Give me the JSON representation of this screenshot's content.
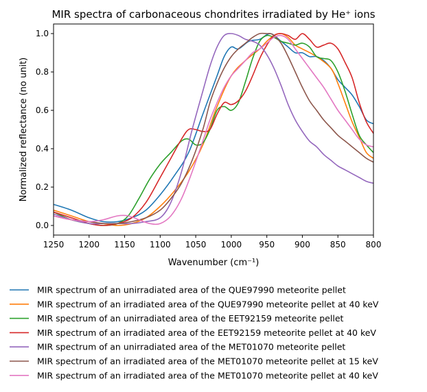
{
  "chart_data": {
    "type": "line",
    "title": "MIR spectra of carbonaceous chondrites irradiated by He⁺ ions",
    "xlabel": "Wavenumber (cm⁻¹)",
    "ylabel": "Normalized reflectance (no unit)",
    "xlim": [
      1250,
      800
    ],
    "ylim": [
      -0.05,
      1.05
    ],
    "x_reversed": true,
    "grid": false,
    "legend_position": "below-plot",
    "xticks": [
      1250,
      1200,
      1150,
      1100,
      1050,
      1000,
      950,
      900,
      850,
      800
    ],
    "yticks": [
      0.0,
      0.2,
      0.4,
      0.6,
      0.8,
      1.0
    ],
    "xtick_labels": [
      "1250",
      "1200",
      "1150",
      "1100",
      "1050",
      "1000",
      "950",
      "900",
      "850",
      "800"
    ],
    "ytick_labels": [
      "0.0",
      "0.2",
      "0.4",
      "0.6",
      "0.8",
      "1.0"
    ],
    "series": [
      {
        "name": "MIR spectrum of an unirradiated area of the QUE97990 meteorite pellet",
        "color": "#1f77b4",
        "x": [
          1250,
          1225,
          1200,
          1180,
          1160,
          1140,
          1120,
          1100,
          1080,
          1060,
          1040,
          1020,
          1010,
          1000,
          990,
          975,
          960,
          945,
          930,
          920,
          910,
          900,
          890,
          880,
          870,
          860,
          850,
          840,
          830,
          820,
          810,
          800
        ],
        "y": [
          0.11,
          0.08,
          0.04,
          0.02,
          0.02,
          0.04,
          0.08,
          0.16,
          0.26,
          0.38,
          0.58,
          0.78,
          0.88,
          0.93,
          0.92,
          0.96,
          0.97,
          1.0,
          0.96,
          0.93,
          0.9,
          0.9,
          0.88,
          0.88,
          0.86,
          0.82,
          0.76,
          0.72,
          0.68,
          0.62,
          0.55,
          0.53
        ]
      },
      {
        "name": "MIR spectrum of an irradiated area of the QUE97990 meteorite pellet at 40 keV",
        "color": "#ff7f0e",
        "x": [
          1250,
          1225,
          1200,
          1180,
          1160,
          1140,
          1120,
          1100,
          1080,
          1060,
          1040,
          1020,
          1000,
          980,
          960,
          950,
          940,
          930,
          920,
          910,
          900,
          880,
          860,
          850,
          840,
          830,
          820,
          810,
          800
        ],
        "y": [
          0.08,
          0.05,
          0.02,
          0.01,
          0.0,
          0.01,
          0.04,
          0.1,
          0.18,
          0.28,
          0.42,
          0.62,
          0.78,
          0.86,
          0.92,
          0.96,
          0.99,
          1.0,
          0.98,
          0.94,
          0.92,
          0.88,
          0.82,
          0.74,
          0.64,
          0.54,
          0.46,
          0.38,
          0.35
        ]
      },
      {
        "name": "MIR spectrum of an unirradiated area of the EET92159 meteorite pellet",
        "color": "#2ca02c",
        "x": [
          1250,
          1225,
          1200,
          1180,
          1160,
          1145,
          1130,
          1115,
          1100,
          1085,
          1070,
          1060,
          1050,
          1040,
          1030,
          1020,
          1010,
          1000,
          990,
          980,
          970,
          960,
          950,
          940,
          930,
          920,
          910,
          900,
          890,
          880,
          870,
          860,
          850,
          840,
          830,
          820,
          810,
          800
        ],
        "y": [
          0.07,
          0.03,
          0.01,
          0.0,
          0.01,
          0.05,
          0.14,
          0.24,
          0.32,
          0.38,
          0.44,
          0.45,
          0.42,
          0.43,
          0.5,
          0.6,
          0.62,
          0.6,
          0.64,
          0.75,
          0.87,
          0.96,
          0.99,
          0.98,
          0.96,
          0.95,
          0.94,
          0.95,
          0.93,
          0.88,
          0.87,
          0.86,
          0.8,
          0.7,
          0.58,
          0.47,
          0.42,
          0.38
        ]
      },
      {
        "name": "MIR spectrum of an irradiated area of the EET92159 meteorite pellet at 40 keV",
        "color": "#d62728",
        "x": [
          1250,
          1225,
          1200,
          1180,
          1160,
          1140,
          1120,
          1100,
          1085,
          1070,
          1060,
          1050,
          1040,
          1030,
          1020,
          1010,
          1000,
          990,
          980,
          970,
          960,
          950,
          940,
          930,
          920,
          910,
          900,
          890,
          880,
          870,
          860,
          850,
          840,
          830,
          820,
          810,
          800
        ],
        "y": [
          0.07,
          0.04,
          0.01,
          0.0,
          0.01,
          0.04,
          0.12,
          0.25,
          0.35,
          0.45,
          0.5,
          0.5,
          0.49,
          0.5,
          0.58,
          0.64,
          0.63,
          0.65,
          0.7,
          0.78,
          0.87,
          0.94,
          0.99,
          1.0,
          0.99,
          0.97,
          1.0,
          0.97,
          0.93,
          0.94,
          0.95,
          0.92,
          0.85,
          0.77,
          0.64,
          0.54,
          0.48
        ]
      },
      {
        "name": "MIR spectrum of an unirradiated area of the MET01070 meteorite pellet",
        "color": "#9467bd",
        "x": [
          1250,
          1225,
          1200,
          1180,
          1160,
          1140,
          1120,
          1100,
          1085,
          1070,
          1055,
          1040,
          1030,
          1020,
          1010,
          1000,
          990,
          980,
          970,
          960,
          950,
          940,
          930,
          920,
          910,
          900,
          890,
          880,
          870,
          860,
          850,
          840,
          830,
          820,
          810,
          800
        ],
        "y": [
          0.06,
          0.03,
          0.01,
          0.01,
          0.01,
          0.01,
          0.02,
          0.04,
          0.12,
          0.28,
          0.5,
          0.7,
          0.83,
          0.93,
          0.99,
          1.0,
          0.99,
          0.97,
          0.96,
          0.94,
          0.89,
          0.82,
          0.73,
          0.63,
          0.55,
          0.49,
          0.44,
          0.41,
          0.37,
          0.34,
          0.31,
          0.29,
          0.27,
          0.25,
          0.23,
          0.22
        ]
      },
      {
        "name": "MIR spectrum of an irradiated area of the MET01070 meteorite pellet at 15 keV",
        "color": "#8c564b",
        "x": [
          1250,
          1225,
          1200,
          1180,
          1160,
          1140,
          1120,
          1100,
          1085,
          1070,
          1055,
          1040,
          1030,
          1020,
          1010,
          1000,
          990,
          980,
          970,
          960,
          950,
          945,
          940,
          930,
          920,
          910,
          900,
          890,
          880,
          870,
          860,
          850,
          840,
          830,
          820,
          810,
          800
        ],
        "y": [
          0.05,
          0.03,
          0.02,
          0.01,
          0.01,
          0.02,
          0.04,
          0.08,
          0.14,
          0.22,
          0.34,
          0.5,
          0.64,
          0.74,
          0.82,
          0.88,
          0.92,
          0.95,
          0.98,
          1.0,
          1.0,
          1.0,
          0.99,
          0.95,
          0.88,
          0.8,
          0.72,
          0.65,
          0.6,
          0.55,
          0.51,
          0.47,
          0.44,
          0.41,
          0.38,
          0.35,
          0.33
        ]
      },
      {
        "name": "MIR spectrum of an irradiated area of the MET01070 meteorite pellet at 40 keV",
        "color": "#e377c2",
        "x": [
          1250,
          1225,
          1200,
          1180,
          1160,
          1145,
          1130,
          1115,
          1100,
          1085,
          1070,
          1055,
          1040,
          1030,
          1020,
          1010,
          1000,
          990,
          980,
          970,
          960,
          950,
          940,
          930,
          920,
          910,
          900,
          890,
          880,
          870,
          860,
          850,
          840,
          830,
          820,
          810,
          800
        ],
        "y": [
          0.05,
          0.03,
          0.02,
          0.03,
          0.05,
          0.05,
          0.03,
          0.01,
          0.01,
          0.05,
          0.14,
          0.28,
          0.44,
          0.55,
          0.64,
          0.72,
          0.78,
          0.82,
          0.86,
          0.9,
          0.92,
          0.95,
          0.98,
          0.99,
          0.97,
          0.92,
          0.87,
          0.82,
          0.77,
          0.72,
          0.66,
          0.6,
          0.55,
          0.5,
          0.45,
          0.42,
          0.41
        ]
      }
    ]
  }
}
